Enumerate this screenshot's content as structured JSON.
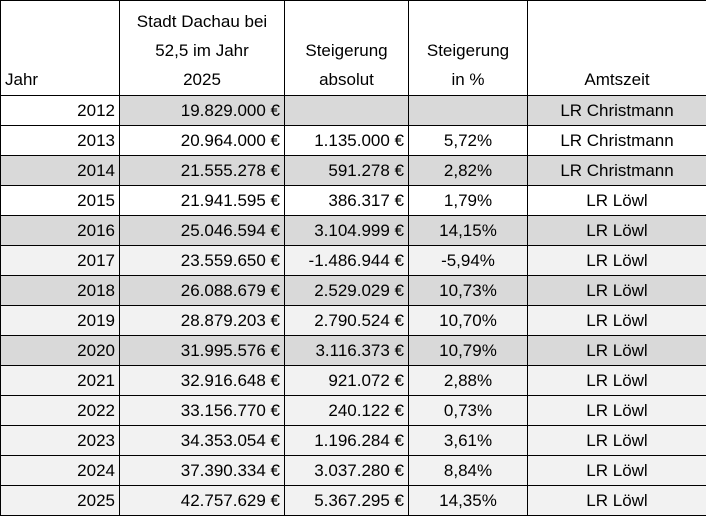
{
  "table": {
    "header": [
      [
        "Jahr"
      ],
      [
        "Stadt Dachau bei",
        "52,5 im Jahr",
        "2025"
      ],
      [
        "Steigerung",
        "absolut"
      ],
      [
        "Steigerung",
        "in %"
      ],
      [
        "Amtszeit"
      ]
    ],
    "rows": [
      [
        "2012",
        "19.829.000 €",
        null,
        null,
        "LR Christmann"
      ],
      [
        "2013",
        "20.964.000 €",
        "1.135.000 €",
        "5,72%",
        "LR Christmann"
      ],
      [
        "2014",
        "21.555.278 €",
        "591.278 €",
        "2,82%",
        "LR Christmann"
      ],
      [
        "2015",
        "21.941.595 €",
        "386.317 €",
        "1,79%",
        "LR Löwl"
      ],
      [
        "2016",
        "25.046.594 €",
        "3.104.999 €",
        "14,15%",
        "LR Löwl"
      ],
      [
        "2017",
        "23.559.650 €",
        "-1.486.944 €",
        "-5,94%",
        "LR Löwl"
      ],
      [
        "2018",
        "26.088.679 €",
        "2.529.029 €",
        "10,73%",
        "LR Löwl"
      ],
      [
        "2019",
        "28.879.203 €",
        "2.790.524 €",
        "10,70%",
        "LR Löwl"
      ],
      [
        "2020",
        "31.995.576 €",
        "3.116.373 €",
        "10,79%",
        "LR Löwl"
      ],
      [
        "2021",
        "32.916.648 €",
        "921.072 €",
        "2,88%",
        "LR Löwl"
      ],
      [
        "2022",
        "33.156.770 €",
        "240.122 €",
        "0,73%",
        "LR Löwl"
      ],
      [
        "2023",
        "34.353.054 €",
        "1.196.284 €",
        "3,61%",
        "LR Löwl"
      ],
      [
        "2024",
        "37.390.334 €",
        "3.037.280 €",
        "8,84%",
        "LR Löwl"
      ],
      [
        "2025",
        "42.757.629 €",
        "5.367.295 €",
        "14,35%",
        "LR Löwl"
      ]
    ]
  }
}
